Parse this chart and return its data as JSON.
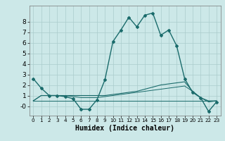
{
  "xlabel": "Humidex (Indice chaleur)",
  "ylabel": "",
  "background_color": "#cce8e8",
  "grid_color": "#aacccc",
  "line_color": "#1a6b6b",
  "xlim": [
    -0.5,
    23.5
  ],
  "ylim": [
    -0.9,
    9.5
  ],
  "xticks": [
    0,
    1,
    2,
    3,
    4,
    5,
    6,
    7,
    8,
    9,
    10,
    11,
    12,
    13,
    14,
    15,
    16,
    17,
    18,
    19,
    20,
    21,
    22,
    23
  ],
  "yticks": [
    0,
    1,
    2,
    3,
    4,
    5,
    6,
    7,
    8
  ],
  "ytick_labels": [
    "-0",
    "1",
    "2",
    "3",
    "4",
    "5",
    "6",
    "7",
    "8"
  ],
  "series": [
    {
      "x": [
        0,
        1,
        2,
        3,
        4,
        5,
        6,
        7,
        8,
        9,
        10,
        11,
        12,
        13,
        14,
        15,
        16,
        17,
        18,
        19,
        20,
        21,
        22,
        23
      ],
      "y": [
        2.6,
        1.7,
        1.0,
        1.0,
        0.9,
        0.7,
        -0.3,
        -0.3,
        0.6,
        2.5,
        6.1,
        7.2,
        8.4,
        7.5,
        8.6,
        8.8,
        6.7,
        7.2,
        5.7,
        2.6,
        1.3,
        0.8,
        -0.5,
        0.4
      ],
      "marker": "D",
      "markersize": 2.0,
      "linewidth": 1.0
    },
    {
      "x": [
        0,
        1,
        2,
        3,
        4,
        5,
        6,
        7,
        8,
        9,
        10,
        11,
        12,
        13,
        14,
        15,
        16,
        17,
        18,
        19,
        20,
        21,
        22,
        23
      ],
      "y": [
        0.5,
        1.0,
        1.0,
        1.0,
        1.0,
        1.0,
        1.0,
        1.0,
        1.0,
        1.0,
        1.1,
        1.2,
        1.3,
        1.4,
        1.6,
        1.8,
        2.0,
        2.1,
        2.2,
        2.3,
        1.4,
        0.8,
        0.4,
        0.5
      ],
      "marker": null,
      "markersize": 0,
      "linewidth": 0.8
    },
    {
      "x": [
        0,
        23
      ],
      "y": [
        0.5,
        0.5
      ],
      "marker": null,
      "markersize": 0,
      "linewidth": 0.7
    },
    {
      "x": [
        0,
        1,
        2,
        3,
        4,
        5,
        6,
        7,
        8,
        9,
        10,
        11,
        12,
        13,
        14,
        15,
        16,
        17,
        18,
        19,
        20,
        21,
        22,
        23
      ],
      "y": [
        0.5,
        1.0,
        1.0,
        1.0,
        1.0,
        0.9,
        0.8,
        0.8,
        0.8,
        0.9,
        1.0,
        1.1,
        1.2,
        1.3,
        1.4,
        1.5,
        1.6,
        1.7,
        1.8,
        1.9,
        1.4,
        0.8,
        0.5,
        0.5
      ],
      "marker": null,
      "markersize": 0,
      "linewidth": 0.7
    }
  ]
}
